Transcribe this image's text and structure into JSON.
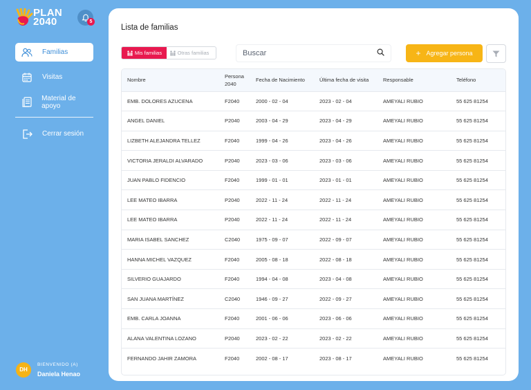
{
  "app": {
    "logo_line1": "PLAN",
    "logo_line2": "2040",
    "notification_count": "5"
  },
  "colors": {
    "accent": "#e8194f",
    "primary": "#3d8ed8",
    "warning": "#f7b516",
    "background": "#6cb0ea"
  },
  "sidebar": {
    "items": [
      {
        "label": "Familias",
        "icon": "people-icon"
      },
      {
        "label": "Visitas",
        "icon": "calendar-icon"
      },
      {
        "label": "Material de apoyo",
        "icon": "documents-icon"
      }
    ],
    "logout_label": "Cerrar sesión"
  },
  "user": {
    "welcome": "BIENVENIDO (A)",
    "name": "Daniela Henao",
    "initials": "DH"
  },
  "main": {
    "title": "Lista de familias",
    "toggle": {
      "mine": "Mis familias",
      "others": "Otras familias"
    },
    "search_placeholder": "Buscar",
    "add_label": "Agregar persona"
  },
  "table": {
    "headers": {
      "nombre": "Nombre",
      "persona_1": "Persona",
      "persona_2": "2040",
      "fecha_nacimiento": "Fecha de Nacimiento",
      "ultima_visita": "Última fecha de visita",
      "responsable": "Responsable",
      "telefono": "Teléfono"
    },
    "rows": [
      {
        "nombre": "EMB. DOLORES AZUCENA",
        "persona": "F2040",
        "nacimiento": "2000 - 02 - 04",
        "visita": "2023 - 02 - 04",
        "responsable": "AMEYALI RUBIO",
        "telefono": "55 625 81254"
      },
      {
        "nombre": "ANGEL DANIEL",
        "persona": "P2040",
        "nacimiento": "2003 - 04 - 29",
        "visita": "2023 - 04 - 29",
        "responsable": "AMEYALI RUBIO",
        "telefono": "55 625 81254"
      },
      {
        "nombre": "LIZBETH ALEJANDRA TELLEZ",
        "persona": "F2040",
        "nacimiento": "1999 - 04 - 26",
        "visita": "2023 - 04 - 26",
        "responsable": "AMEYALI RUBIO",
        "telefono": "55 625 81254"
      },
      {
        "nombre": "VICTORIA JERALDI ALVARADO",
        "persona": "P2040",
        "nacimiento": "2023 - 03 - 06",
        "visita": "2023 - 03 - 06",
        "responsable": "AMEYALI RUBIO",
        "telefono": "55 625 81254"
      },
      {
        "nombre": "JUAN PABLO FIDENCIO",
        "persona": "F2040",
        "nacimiento": "1999 - 01 - 01",
        "visita": "2023 - 01 - 01",
        "responsable": "AMEYALI RUBIO",
        "telefono": "55 625 81254"
      },
      {
        "nombre": "LEE MATEO IBARRA",
        "persona": "P2040",
        "nacimiento": "2022 - 11 - 24",
        "visita": "2022 - 11 - 24",
        "responsable": "AMEYALI RUBIO",
        "telefono": "55 625 81254"
      },
      {
        "nombre": "LEE MATEO IBARRA",
        "persona": "P2040",
        "nacimiento": "2022 - 11 - 24",
        "visita": "2022 - 11 - 24",
        "responsable": "AMEYALI RUBIO",
        "telefono": "55 625 81254"
      },
      {
        "nombre": "MARIA ISABEL SANCHEZ",
        "persona": "C2040",
        "nacimiento": "1975 - 09 - 07",
        "visita": "2022 - 09 - 07",
        "responsable": "AMEYALI RUBIO",
        "telefono": "55 625 81254"
      },
      {
        "nombre": "HANNA MICHEL VAZQUEZ",
        "persona": "F2040",
        "nacimiento": "2005 - 08 - 18",
        "visita": "2022 - 08 - 18",
        "responsable": "AMEYALI RUBIO",
        "telefono": "55 625 81254"
      },
      {
        "nombre": "SILVERIO GUAJARDO",
        "persona": "F2040",
        "nacimiento": "1994 - 04 - 08",
        "visita": "2023 - 04 - 08",
        "responsable": "AMEYALI RUBIO",
        "telefono": "55 625 81254"
      },
      {
        "nombre": "SAN JUANA MARTÍNEZ",
        "persona": "C2040",
        "nacimiento": "1946 - 09 - 27",
        "visita": "2022 - 09 - 27",
        "responsable": "AMEYALI RUBIO",
        "telefono": "55 625 81254"
      },
      {
        "nombre": "EMB. CARLA JOANNA",
        "persona": "F2040",
        "nacimiento": "2001 - 06 - 06",
        "visita": "2023 - 06 - 06",
        "responsable": "AMEYALI RUBIO",
        "telefono": "55 625 81254"
      },
      {
        "nombre": "ALANA VALENTINA LOZANO",
        "persona": "P2040",
        "nacimiento": "2023 - 02 - 22",
        "visita": "2023 - 02 - 22",
        "responsable": "AMEYALI RUBIO",
        "telefono": "55 625 81254"
      },
      {
        "nombre": "FERNANDO JAHIR ZAMORA",
        "persona": "F2040",
        "nacimiento": "2002 - 08 - 17",
        "visita": "2023 - 08 - 17",
        "responsable": "AMEYALI RUBIO",
        "telefono": "55 625 81254"
      }
    ]
  }
}
